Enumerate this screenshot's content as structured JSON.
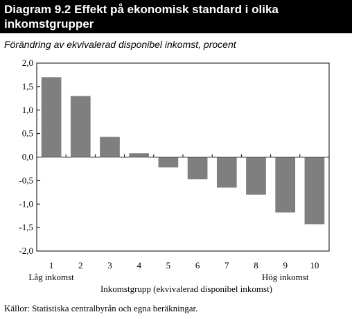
{
  "chart_data": {
    "type": "bar",
    "title": "Diagram 9.2 Effekt på ekonomisk standard i olika inkomstgrupper",
    "subtitle": "Förändring av ekvivalerad disponibel inkomst, procent",
    "xlabel": "Inkomstgrupp (ekvivalerad disponibel inkomst)",
    "categories": [
      "1",
      "2",
      "3",
      "4",
      "5",
      "6",
      "7",
      "8",
      "9",
      "10"
    ],
    "category_sublabels": {
      "low": "Låg inkomst",
      "high": "Hög inkomst"
    },
    "values": [
      1.7,
      1.3,
      0.43,
      0.08,
      -0.22,
      -0.47,
      -0.65,
      -0.8,
      -1.18,
      -1.43
    ],
    "ylim": [
      -2.0,
      2.0
    ],
    "yticks": [
      "2,0",
      "1,5",
      "1,0",
      "0,5",
      "0,0",
      "-0,5",
      "-1,0",
      "-1,5",
      "-2,0"
    ],
    "ytick_values": [
      2.0,
      1.5,
      1.0,
      0.5,
      0.0,
      -0.5,
      -1.0,
      -1.5,
      -2.0
    ],
    "bar_color": "#7f7f7f",
    "grid": false,
    "source": "Källor: Statistiska centralbyrån och egna beräkningar."
  }
}
